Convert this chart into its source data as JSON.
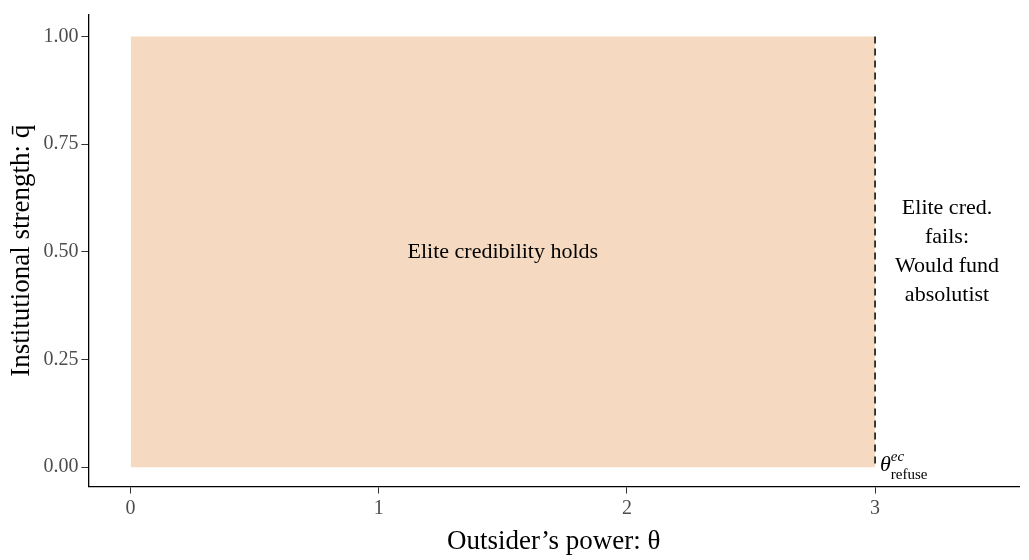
{
  "chart_data": {
    "type": "area",
    "xlabel": "Outsider’s power: θ",
    "ylabel": "Institutional strength: q̄",
    "series": [
      {
        "x": [
          0,
          3
        ],
        "values": [
          1,
          1
        ],
        "color": "#f5d9c0"
      }
    ],
    "xlim": [
      -0.17,
      3.58
    ],
    "ylim": [
      -0.045,
      1.05
    ],
    "xticks": [
      0,
      1,
      2,
      3
    ],
    "yticks": [
      {
        "value": 0,
        "label": "0.00"
      },
      {
        "value": 0.25,
        "label": "0.25"
      },
      {
        "value": 0.5,
        "label": "0.50"
      },
      {
        "value": 0.75,
        "label": "0.75"
      },
      {
        "value": 1,
        "label": "1.00"
      }
    ],
    "ref_lines": [
      {
        "axis": "x",
        "value": 3,
        "label": "θ$^{ec}$$_{refuse}$",
        "line_style": "dashed",
        "color": "#000000"
      }
    ],
    "annotations": [
      "Elite credibility holds",
      "Elite cred.\nfails:\nWould fund\nabsolutist"
    ],
    "grid": false,
    "legend": false
  }
}
